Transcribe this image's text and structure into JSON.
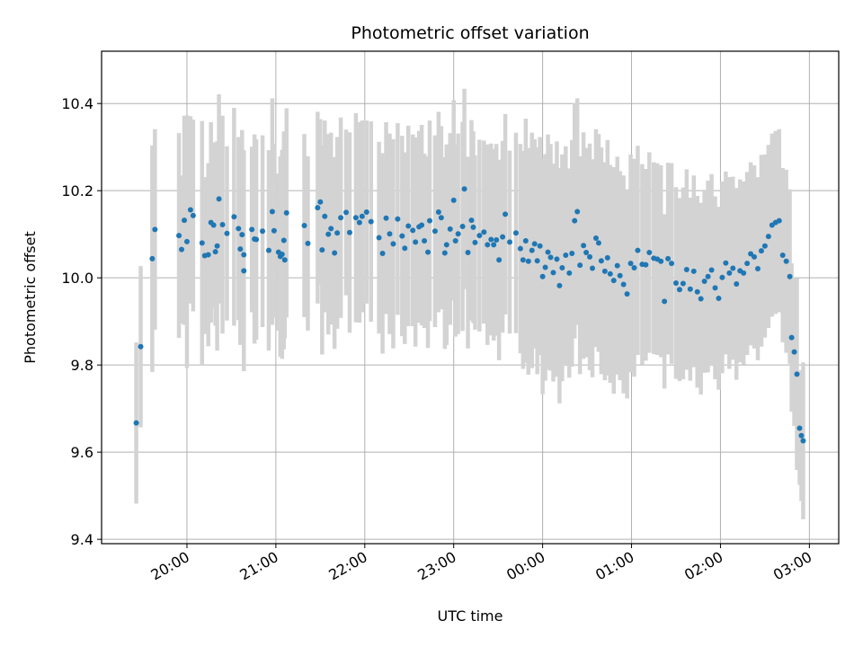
{
  "chart_data": {
    "type": "scatter",
    "title": "Photometric offset variation",
    "xlabel": "UTC time",
    "ylabel": "Photometric offset",
    "x_units": "hours since 00:00 UTC (negative = previous day)",
    "xlim": [
      -4.96,
      3.33
    ],
    "ylim": [
      9.39,
      10.52
    ],
    "x_ticks": [
      -4,
      -3,
      -2,
      -1,
      0,
      1,
      2,
      3
    ],
    "x_tick_labels": [
      "20:00",
      "21:00",
      "22:00",
      "23:00",
      "00:00",
      "01:00",
      "02:00",
      "03:00"
    ],
    "y_ticks": [
      9.4,
      9.6,
      9.8,
      10.0,
      10.2,
      10.4
    ],
    "y_tick_labels": [
      "9.4",
      "9.6",
      "9.8",
      "10.0",
      "10.2",
      "10.4"
    ],
    "grid": true,
    "point_color": "#1f77b4",
    "errorbar_color": "#d3d3d3",
    "points": [
      [
        -4.57,
        9.667,
        0.185
      ],
      [
        -4.52,
        9.842,
        0.185
      ],
      [
        -4.39,
        10.044,
        0.26
      ],
      [
        -4.36,
        10.111,
        0.23
      ],
      [
        -4.09,
        10.097,
        0.235
      ],
      [
        -4.06,
        10.065,
        0.17
      ],
      [
        -4.03,
        10.132,
        0.24
      ],
      [
        -4.0,
        10.083,
        0.29
      ],
      [
        -3.96,
        10.156,
        0.215
      ],
      [
        -3.93,
        10.143,
        0.22
      ],
      [
        -3.83,
        10.08,
        0.28
      ],
      [
        -3.8,
        10.051,
        0.18
      ],
      [
        -3.76,
        10.053,
        0.21
      ],
      [
        -3.73,
        10.127,
        0.23
      ],
      [
        -3.7,
        10.121,
        0.19
      ],
      [
        -3.68,
        10.06,
        0.17
      ],
      [
        -3.66,
        10.073,
        0.24
      ],
      [
        -3.64,
        10.181,
        0.24
      ],
      [
        -3.6,
        10.122,
        0.25
      ],
      [
        -3.55,
        10.102,
        0.2
      ],
      [
        -3.47,
        10.14,
        0.25
      ],
      [
        -3.42,
        10.113,
        0.21
      ],
      [
        -3.4,
        10.066,
        0.22
      ],
      [
        -3.38,
        10.099,
        0.24
      ],
      [
        -3.36,
        10.053,
        0.24
      ],
      [
        -3.36,
        10.016,
        0.23
      ],
      [
        -3.27,
        10.111,
        0.19
      ],
      [
        -3.24,
        10.089,
        0.24
      ],
      [
        -3.22,
        10.088,
        0.23
      ],
      [
        -3.15,
        10.107,
        0.22
      ],
      [
        -3.08,
        10.063,
        0.23
      ],
      [
        -3.04,
        10.152,
        0.26
      ],
      [
        -3.02,
        10.108,
        0.2
      ],
      [
        -2.97,
        10.059,
        0.18
      ],
      [
        -2.95,
        10.049,
        0.23
      ],
      [
        -2.93,
        10.054,
        0.24
      ],
      [
        -2.91,
        10.086,
        0.25
      ],
      [
        -2.9,
        10.041,
        0.18
      ],
      [
        -2.88,
        10.149,
        0.24
      ],
      [
        -2.68,
        10.12,
        0.21
      ],
      [
        -2.64,
        10.079,
        0.2
      ],
      [
        -2.53,
        10.161,
        0.22
      ],
      [
        -2.5,
        10.174,
        0.19
      ],
      [
        -2.48,
        10.064,
        0.24
      ],
      [
        -2.45,
        10.141,
        0.22
      ],
      [
        -2.41,
        10.1,
        0.23
      ],
      [
        -2.38,
        10.113,
        0.22
      ],
      [
        -2.34,
        10.057,
        0.22
      ],
      [
        -2.31,
        10.103,
        0.22
      ],
      [
        -2.27,
        10.138,
        0.23
      ],
      [
        -2.21,
        10.15,
        0.19
      ],
      [
        -2.17,
        10.104,
        0.23
      ],
      [
        -2.1,
        10.138,
        0.24
      ],
      [
        -2.06,
        10.127,
        0.23
      ],
      [
        -2.03,
        10.141,
        0.22
      ],
      [
        -1.98,
        10.151,
        0.21
      ],
      [
        -1.93,
        10.129,
        0.23
      ],
      [
        -1.84,
        10.092,
        0.22
      ],
      [
        -1.8,
        10.056,
        0.23
      ],
      [
        -1.76,
        10.137,
        0.22
      ],
      [
        -1.72,
        10.101,
        0.23
      ],
      [
        -1.68,
        10.078,
        0.24
      ],
      [
        -1.63,
        10.135,
        0.22
      ],
      [
        -1.58,
        10.096,
        0.23
      ],
      [
        -1.55,
        10.068,
        0.22
      ],
      [
        -1.51,
        10.119,
        0.23
      ],
      [
        -1.46,
        10.109,
        0.22
      ],
      [
        -1.43,
        10.082,
        0.24
      ],
      [
        -1.39,
        10.117,
        0.22
      ],
      [
        -1.36,
        10.121,
        0.23
      ],
      [
        -1.33,
        10.085,
        0.2
      ],
      [
        -1.29,
        10.059,
        0.22
      ],
      [
        -1.27,
        10.131,
        0.23
      ],
      [
        -1.21,
        10.107,
        0.22
      ],
      [
        -1.17,
        10.151,
        0.23
      ],
      [
        -1.14,
        10.138,
        0.21
      ],
      [
        -1.1,
        10.057,
        0.22
      ],
      [
        -1.08,
        10.076,
        0.23
      ],
      [
        -1.04,
        10.112,
        0.22
      ],
      [
        -1.0,
        10.178,
        0.23
      ],
      [
        -0.98,
        10.085,
        0.22
      ],
      [
        -0.95,
        10.101,
        0.23
      ],
      [
        -0.9,
        10.118,
        0.24
      ],
      [
        -0.88,
        10.204,
        0.23
      ],
      [
        -0.84,
        10.058,
        0.22
      ],
      [
        -0.8,
        10.132,
        0.23
      ],
      [
        -0.78,
        10.116,
        0.22
      ],
      [
        -0.76,
        10.081,
        0.2
      ],
      [
        -0.71,
        10.097,
        0.22
      ],
      [
        -0.66,
        10.105,
        0.21
      ],
      [
        -0.62,
        10.076,
        0.23
      ],
      [
        -0.58,
        10.088,
        0.22
      ],
      [
        -0.55,
        10.076,
        0.22
      ],
      [
        -0.52,
        10.087,
        0.22
      ],
      [
        -0.49,
        10.041,
        0.23
      ],
      [
        -0.45,
        10.094,
        0.22
      ],
      [
        -0.42,
        10.146,
        0.23
      ],
      [
        -0.37,
        10.082,
        0.21
      ],
      [
        -0.3,
        10.103,
        0.23
      ],
      [
        -0.25,
        10.067,
        0.24
      ],
      [
        -0.22,
        10.041,
        0.25
      ],
      [
        -0.19,
        10.085,
        0.28
      ],
      [
        -0.16,
        10.038,
        0.26
      ],
      [
        -0.12,
        10.063,
        0.27
      ],
      [
        -0.09,
        10.078,
        0.24
      ],
      [
        -0.06,
        10.039,
        0.26
      ],
      [
        -0.03,
        10.073,
        0.25
      ],
      [
        0.0,
        10.003,
        0.27
      ],
      [
        0.03,
        10.024,
        0.26
      ],
      [
        0.06,
        10.059,
        0.27
      ],
      [
        0.09,
        10.047,
        0.26
      ],
      [
        0.12,
        10.012,
        0.25
      ],
      [
        0.16,
        10.043,
        0.27
      ],
      [
        0.19,
        9.982,
        0.27
      ],
      [
        0.22,
        10.023,
        0.26
      ],
      [
        0.26,
        10.052,
        0.25
      ],
      [
        0.3,
        10.011,
        0.24
      ],
      [
        0.33,
        10.056,
        0.26
      ],
      [
        0.36,
        10.131,
        0.27
      ],
      [
        0.39,
        10.152,
        0.26
      ],
      [
        0.42,
        10.029,
        0.25
      ],
      [
        0.46,
        10.074,
        0.26
      ],
      [
        0.49,
        10.058,
        0.24
      ],
      [
        0.53,
        10.048,
        0.26
      ],
      [
        0.56,
        10.022,
        0.25
      ],
      [
        0.6,
        10.091,
        0.25
      ],
      [
        0.63,
        10.08,
        0.25
      ],
      [
        0.66,
        10.039,
        0.26
      ],
      [
        0.7,
        10.015,
        0.25
      ],
      [
        0.73,
        10.046,
        0.27
      ],
      [
        0.76,
        10.009,
        0.25
      ],
      [
        0.8,
        9.994,
        0.26
      ],
      [
        0.84,
        10.028,
        0.25
      ],
      [
        0.87,
        10.005,
        0.24
      ],
      [
        0.91,
        9.985,
        0.25
      ],
      [
        0.95,
        9.963,
        0.24
      ],
      [
        0.99,
        10.033,
        0.25
      ],
      [
        1.03,
        10.023,
        0.25
      ],
      [
        1.07,
        10.063,
        0.24
      ],
      [
        1.12,
        10.031,
        0.23
      ],
      [
        1.16,
        10.03,
        0.22
      ],
      [
        1.2,
        10.058,
        0.23
      ],
      [
        1.25,
        10.045,
        0.22
      ],
      [
        1.29,
        10.043,
        0.22
      ],
      [
        1.33,
        10.038,
        0.22
      ],
      [
        1.37,
        9.946,
        0.2
      ],
      [
        1.41,
        10.044,
        0.22
      ],
      [
        1.45,
        10.033,
        0.23
      ],
      [
        1.5,
        9.988,
        0.22
      ],
      [
        1.54,
        9.973,
        0.21
      ],
      [
        1.58,
        9.987,
        0.22
      ],
      [
        1.62,
        10.019,
        0.23
      ],
      [
        1.66,
        9.974,
        0.21
      ],
      [
        1.7,
        10.015,
        0.22
      ],
      [
        1.74,
        9.968,
        0.22
      ],
      [
        1.78,
        9.952,
        0.22
      ],
      [
        1.82,
        9.992,
        0.21
      ],
      [
        1.86,
        10.003,
        0.22
      ],
      [
        1.9,
        10.018,
        0.22
      ],
      [
        1.94,
        9.977,
        0.21
      ],
      [
        1.98,
        9.953,
        0.21
      ],
      [
        2.02,
        10.001,
        0.22
      ],
      [
        2.06,
        10.034,
        0.21
      ],
      [
        2.1,
        10.011,
        0.22
      ],
      [
        2.14,
        10.022,
        0.21
      ],
      [
        2.18,
        9.986,
        0.22
      ],
      [
        2.22,
        10.016,
        0.21
      ],
      [
        2.26,
        10.011,
        0.21
      ],
      [
        2.3,
        10.033,
        0.21
      ],
      [
        2.34,
        10.055,
        0.21
      ],
      [
        2.38,
        10.048,
        0.21
      ],
      [
        2.42,
        10.021,
        0.21
      ],
      [
        2.46,
        10.062,
        0.22
      ],
      [
        2.5,
        10.073,
        0.21
      ],
      [
        2.54,
        10.095,
        0.21
      ],
      [
        2.58,
        10.121,
        0.21
      ],
      [
        2.62,
        10.127,
        0.21
      ],
      [
        2.66,
        10.131,
        0.21
      ],
      [
        2.7,
        10.052,
        0.2
      ],
      [
        2.74,
        10.038,
        0.21
      ],
      [
        2.78,
        10.003,
        0.2
      ],
      [
        2.8,
        9.863,
        0.17
      ],
      [
        2.83,
        9.83,
        0.17
      ],
      [
        2.86,
        9.779,
        0.22
      ],
      [
        2.89,
        9.655,
        0.13
      ],
      [
        2.91,
        9.638,
        0.15
      ],
      [
        2.93,
        9.626,
        0.18
      ]
    ]
  }
}
